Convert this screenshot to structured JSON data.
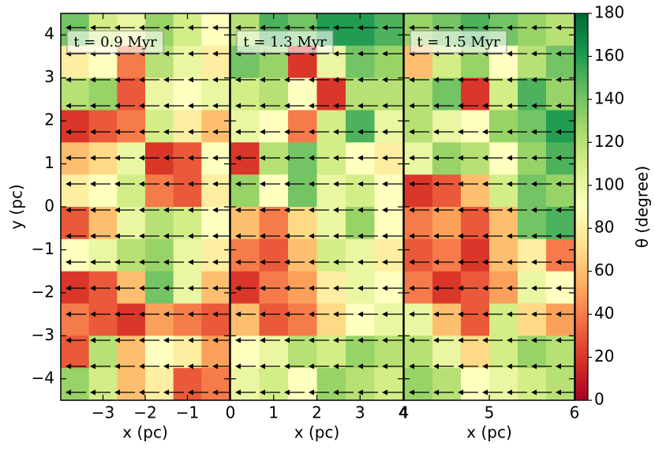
{
  "chart_data": [
    {
      "type": "heatmap",
      "annotation": "t = 0.9 Myr",
      "xlabel": "x (pc)",
      "ylabel": "y (pc)",
      "xlim": [
        -4,
        0
      ],
      "xticks": [
        -3,
        -2,
        -1
      ],
      "ylim": [
        -4.5,
        4.5
      ],
      "yticks": [
        -4,
        -3,
        -2,
        -1,
        0,
        1,
        2,
        3,
        4
      ],
      "colormap": "RdYlGn",
      "colorbar": {
        "label": "θ (degree)",
        "lim": [
          0,
          180
        ],
        "ticks": [
          0,
          20,
          40,
          60,
          80,
          100,
          120,
          140,
          160,
          180
        ]
      },
      "values": [
        [
          140,
          110,
          100,
          130,
          110,
          90
        ],
        [
          80,
          90,
          40,
          120,
          100,
          80
        ],
        [
          120,
          130,
          30,
          100,
          90,
          100
        ],
        [
          20,
          30,
          40,
          110,
          80,
          60
        ],
        [
          60,
          70,
          100,
          20,
          30,
          90
        ],
        [
          80,
          90,
          110,
          40,
          30,
          80
        ],
        [
          30,
          60,
          100,
          120,
          110,
          90
        ],
        [
          90,
          100,
          120,
          130,
          100,
          80
        ],
        [
          20,
          30,
          60,
          140,
          100,
          60
        ],
        [
          40,
          30,
          20,
          50,
          40,
          30
        ],
        [
          30,
          120,
          60,
          90,
          80,
          50
        ],
        [
          130,
          110,
          60,
          80,
          30,
          40
        ]
      ]
    },
    {
      "type": "heatmap",
      "annotation": "t = 1.3 Myr",
      "xlabel": "x (pc)",
      "xlim": [
        0,
        4
      ],
      "xticks": [
        0,
        1,
        2,
        3,
        4
      ],
      "ylim": [
        -4.5,
        4.5
      ],
      "colormap": "RdYlGn",
      "values": [
        [
          120,
          150,
          140,
          160,
          160,
          150
        ],
        [
          140,
          130,
          20,
          100,
          140,
          130
        ],
        [
          110,
          120,
          90,
          20,
          120,
          120
        ],
        [
          100,
          90,
          40,
          110,
          150,
          100
        ],
        [
          20,
          120,
          140,
          110,
          90,
          80
        ],
        [
          130,
          90,
          140,
          100,
          110,
          90
        ],
        [
          60,
          40,
          70,
          100,
          130,
          90
        ],
        [
          40,
          30,
          60,
          110,
          100,
          80
        ],
        [
          20,
          40,
          50,
          80,
          100,
          90
        ],
        [
          60,
          30,
          40,
          70,
          90,
          100
        ],
        [
          90,
          100,
          120,
          110,
          130,
          120
        ],
        [
          100,
          110,
          90,
          130,
          120,
          110
        ]
      ]
    },
    {
      "type": "heatmap",
      "annotation": "t = 1.5 Myr",
      "xlabel": "x (pc)",
      "xlim": [
        4,
        6
      ],
      "xticks": [
        4,
        5,
        6
      ],
      "ylim": [
        -4.5,
        4.5
      ],
      "colormap": "RdYlGn",
      "values": [
        [
          130,
          140,
          150,
          140,
          130,
          120
        ],
        [
          60,
          110,
          130,
          90,
          120,
          140
        ],
        [
          120,
          140,
          20,
          110,
          150,
          130
        ],
        [
          120,
          100,
          90,
          130,
          140,
          160
        ],
        [
          100,
          130,
          120,
          90,
          130,
          150
        ],
        [
          20,
          30,
          60,
          110,
          140,
          130
        ],
        [
          40,
          50,
          30,
          60,
          140,
          150
        ],
        [
          30,
          40,
          20,
          60,
          80,
          40
        ],
        [
          40,
          20,
          30,
          50,
          100,
          90
        ],
        [
          100,
          60,
          30,
          110,
          70,
          50
        ],
        [
          120,
          100,
          70,
          110,
          130,
          120
        ],
        [
          130,
          120,
          90,
          100,
          110,
          120
        ]
      ]
    }
  ]
}
